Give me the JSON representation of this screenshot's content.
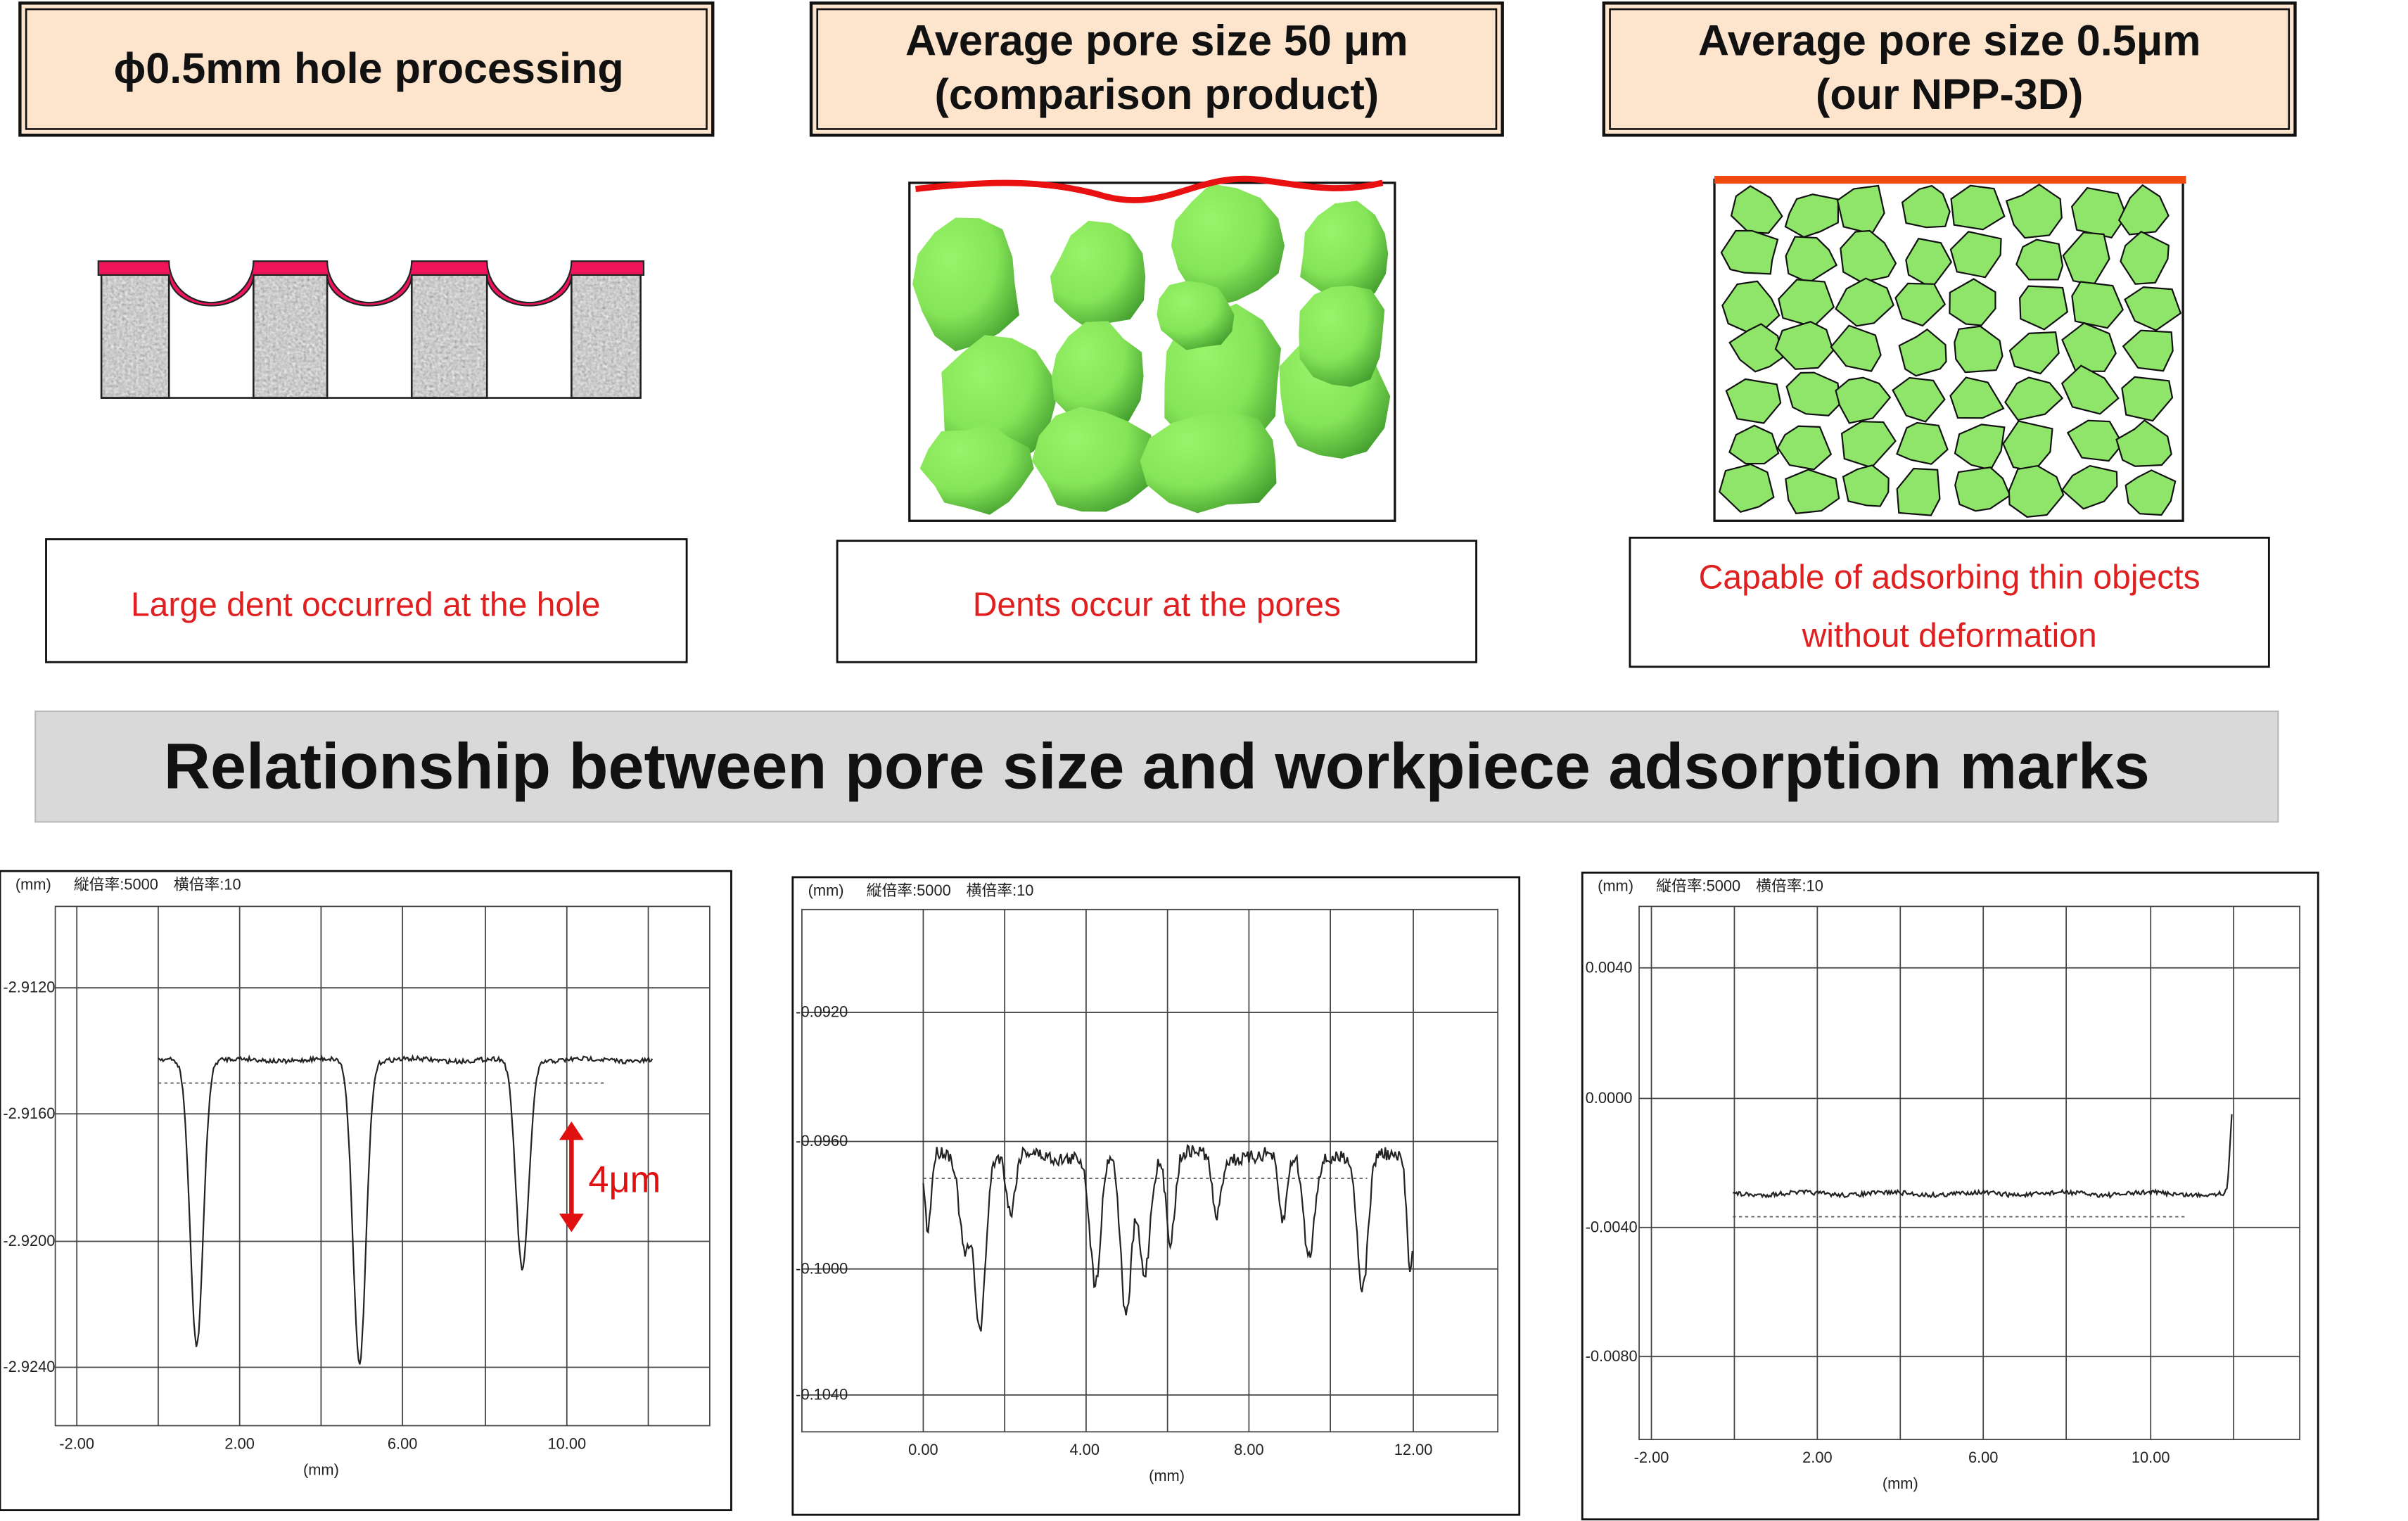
{
  "panels": [
    {
      "header": [
        "ϕ0.5mm hole processing"
      ],
      "caption": [
        "Large dent occurred at the hole"
      ]
    },
    {
      "header": [
        "Average pore size 50 μm",
        "(comparison product)"
      ],
      "caption": [
        "Dents occur at the pores"
      ]
    },
    {
      "header": [
        "Average pore size 0.5μm",
        "(our NPP-3D)"
      ],
      "caption": [
        "Capable of adsorbing thin objects",
        "without deformation"
      ]
    }
  ],
  "banner": "Relationship between pore size and workpiece adsorption marks",
  "profiles": [
    {
      "unit_label": "(mm)",
      "scale_label": "縦倍率:5000　横倍率:10",
      "yticks": [
        "-2.9120",
        "-2.9160",
        "-2.9200",
        "-2.9240"
      ],
      "xticks": [
        "-2.00",
        "2.00",
        "6.00",
        "10.00"
      ],
      "x_unit": "(mm)",
      "annotation": "4μm"
    },
    {
      "unit_label": "(mm)",
      "scale_label": "縦倍率:5000　横倍率:10",
      "yticks": [
        "-0.0920",
        "-0.0960",
        "-0.1000",
        "-0.1040"
      ],
      "xticks": [
        "0.00",
        "4.00",
        "8.00",
        "12.00"
      ],
      "x_unit": "(mm)"
    },
    {
      "unit_label": "(mm)",
      "scale_label": "縦倍率:5000　横倍率:10",
      "yticks": [
        "0.0040",
        "0.0000",
        "-0.0040",
        "-0.0080"
      ],
      "xticks": [
        "-2.00",
        "2.00",
        "6.00",
        "10.00"
      ],
      "x_unit": "(mm)"
    }
  ]
}
